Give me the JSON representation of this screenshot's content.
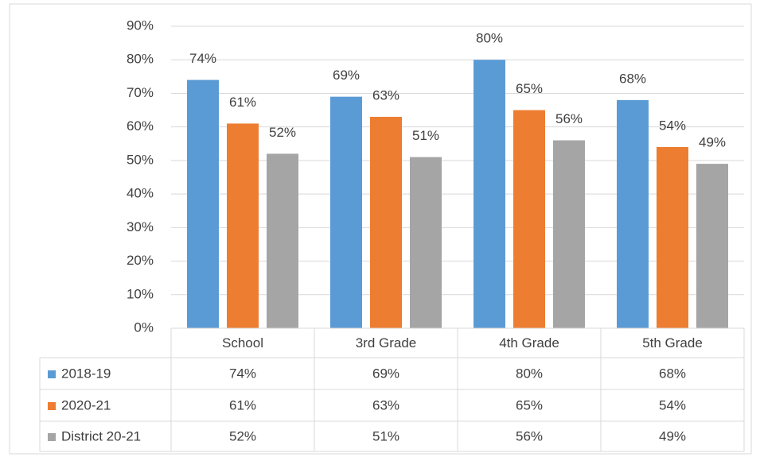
{
  "chart_data": {
    "type": "bar",
    "categories": [
      "School",
      "3rd Grade",
      "4th Grade",
      "5th Grade"
    ],
    "series": [
      {
        "name": "2018-19",
        "color": "#5b9bd5",
        "values": [
          74,
          69,
          80,
          68
        ],
        "value_labels": [
          "74%",
          "69%",
          "80%",
          "68%"
        ]
      },
      {
        "name": "2020-21",
        "color": "#ed7d31",
        "values": [
          61,
          63,
          65,
          54
        ],
        "value_labels": [
          "61%",
          "63%",
          "65%",
          "54%"
        ]
      },
      {
        "name": "District 20-21",
        "color": "#a5a5a5",
        "values": [
          52,
          51,
          56,
          49
        ],
        "value_labels": [
          "52%",
          "51%",
          "56%",
          "49%"
        ]
      }
    ],
    "ylim": [
      0,
      90
    ],
    "yticks": [
      {
        "value": 0,
        "label": "0%"
      },
      {
        "value": 10,
        "label": "10%"
      },
      {
        "value": 20,
        "label": "20%"
      },
      {
        "value": 30,
        "label": "30%"
      },
      {
        "value": 40,
        "label": "40%"
      },
      {
        "value": 50,
        "label": "50%"
      },
      {
        "value": 60,
        "label": "60%"
      },
      {
        "value": 70,
        "label": "70%"
      },
      {
        "value": 80,
        "label": "80%"
      },
      {
        "value": 90,
        "label": "90%"
      }
    ],
    "grid": true,
    "data_table": true
  }
}
